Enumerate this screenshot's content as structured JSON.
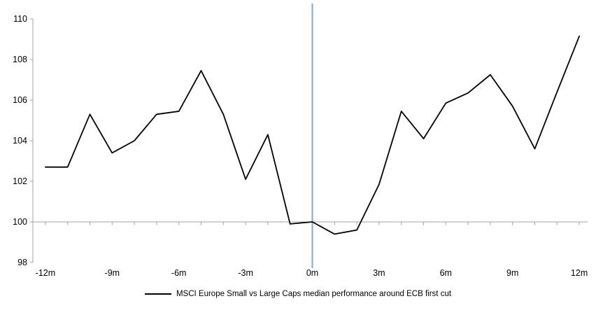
{
  "chart_data": {
    "type": "line",
    "title": "",
    "legend": "MSCI Europe Small vs Large Caps median performance around ECB first cut",
    "x": [
      -12,
      -11,
      -10,
      -9,
      -8,
      -7,
      -6,
      -5,
      -4,
      -3,
      -2,
      -1,
      0,
      1,
      2,
      3,
      4,
      5,
      6,
      7,
      8,
      9,
      10,
      11,
      12
    ],
    "values": [
      102.7,
      102.7,
      105.3,
      103.4,
      104.0,
      105.3,
      105.45,
      107.45,
      105.3,
      102.1,
      104.3,
      99.9,
      100.0,
      99.4,
      99.6,
      101.85,
      105.45,
      104.1,
      105.85,
      106.35,
      107.25,
      105.7,
      103.6,
      106.4,
      109.15
    ],
    "y_ticks": [
      98,
      100,
      102,
      104,
      106,
      108,
      110
    ],
    "ylim": [
      98,
      110
    ],
    "baseline_value": 100,
    "x_tick_labels": [
      "-12m",
      "-9m",
      "-6m",
      "-3m",
      "0m",
      "3m",
      "6m",
      "9m",
      "12m"
    ],
    "x_tick_months": [
      -12,
      -9,
      -6,
      -3,
      0,
      3,
      6,
      9,
      12
    ],
    "event_line_x": 0,
    "legend_position": "bottom-center",
    "grid": "baseline only",
    "colors": {
      "series_line": "#000000",
      "event_line": "#7DA7D0",
      "axis": "#A3A3A3",
      "text": "#000000"
    }
  }
}
